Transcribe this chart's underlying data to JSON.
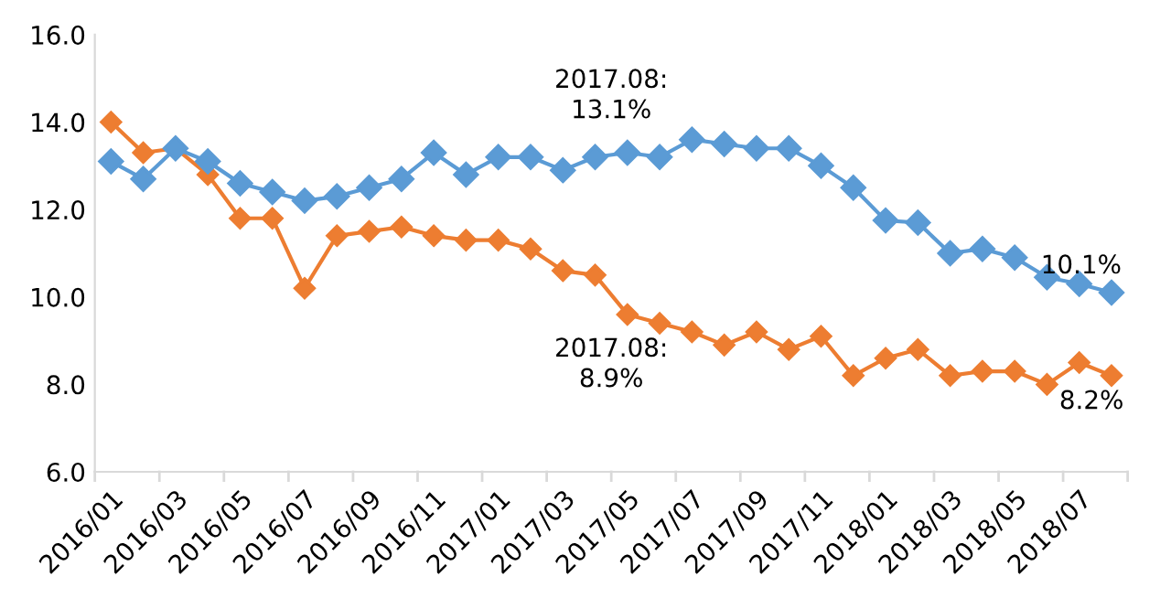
{
  "chart_data": {
    "type": "line",
    "categories": [
      "2016/01",
      null,
      "2016/03",
      null,
      "2016/05",
      null,
      "2016/07",
      null,
      "2016/09",
      null,
      "2016/11",
      null,
      "2017/01",
      null,
      "2017/03",
      null,
      "2017/05",
      null,
      "2017/07",
      null,
      "2017/09",
      null,
      "2017/11",
      null,
      "2018/01",
      null,
      "2018/03",
      null,
      "2018/05",
      null,
      "2018/07",
      null
    ],
    "series": [
      {
        "color": "#5b9bd5",
        "values": [
          13.1,
          12.7,
          13.4,
          13.1,
          12.6,
          12.4,
          12.2,
          12.3,
          12.5,
          12.7,
          13.3,
          12.8,
          13.2,
          13.2,
          12.9,
          13.2,
          13.3,
          13.2,
          13.6,
          13.5,
          13.4,
          13.4,
          13.0,
          12.5,
          11.75,
          11.7,
          11.0,
          11.1,
          10.9,
          10.45,
          10.3,
          10.1
        ]
      },
      {
        "color": "#ed7d31",
        "values": [
          14.0,
          13.3,
          13.4,
          12.8,
          11.8,
          11.8,
          10.2,
          11.4,
          11.5,
          11.6,
          11.4,
          11.3,
          11.3,
          11.1,
          10.6,
          10.5,
          9.6,
          9.4,
          9.2,
          8.9,
          9.2,
          8.8,
          9.1,
          8.2,
          8.6,
          8.8,
          8.2,
          8.3,
          8.3,
          8.0,
          8.5,
          8.2
        ]
      }
    ],
    "ylim": [
      6.0,
      16.0
    ],
    "yticks": [
      {
        "value": 6,
        "label": "6.0"
      },
      {
        "value": 8,
        "label": "8.0"
      },
      {
        "value": 10,
        "label": "10.0"
      },
      {
        "value": 12,
        "label": "12.0"
      },
      {
        "value": 14,
        "label": "14.0"
      },
      {
        "value": 16,
        "label": "16.0"
      }
    ],
    "marker": "diamond",
    "line_style": "solid",
    "grid": false,
    "legend": false,
    "annotations": [
      "2017.08:\n13.1%",
      "10.1%",
      "2017.08:\n8.9%",
      "8.2%"
    ]
  }
}
